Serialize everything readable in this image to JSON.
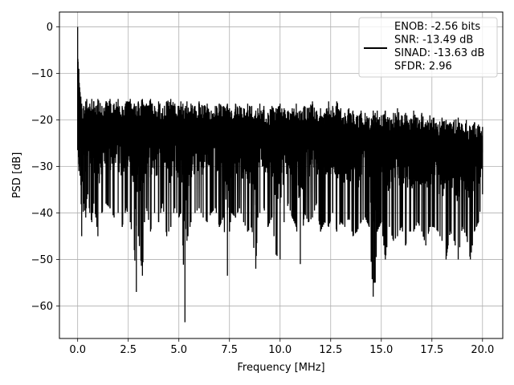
{
  "chart_data": {
    "type": "line",
    "xlabel": "Frequency [MHz]",
    "ylabel": "PSD [dB]",
    "xlim": [
      -0.9,
      21.0
    ],
    "ylim": [
      -67.0,
      3.2
    ],
    "xticks": [
      0.0,
      2.5,
      5.0,
      7.5,
      10.0,
      12.5,
      15.0,
      17.5,
      20.0
    ],
    "xtick_labels": [
      "0.0",
      "2.5",
      "5.0",
      "7.5",
      "10.0",
      "12.5",
      "15.0",
      "17.5",
      "20.0"
    ],
    "yticks": [
      0,
      -10,
      -20,
      -30,
      -40,
      -50,
      -60
    ],
    "ytick_labels": [
      "0",
      "−10",
      "−20",
      "−30",
      "−40",
      "−50",
      "−60"
    ],
    "grid": true,
    "legend_position": "top-right",
    "colors": {
      "line": "#000000",
      "grid": "#b0b0b0",
      "axes": "#000000"
    },
    "series": [
      {
        "name": "ENOB: -2.56 bits\nSNR: -13.49 dB\nSINAD: -13.63 dB\nSFDR: 2.96",
        "x": [
          0.0,
          0.02,
          0.04,
          0.06,
          0.08,
          0.1,
          0.12,
          0.16,
          0.2,
          0.3,
          0.4,
          0.45,
          0.5,
          0.6,
          0.7,
          0.8,
          0.9,
          1.0,
          1.2,
          1.4,
          1.6,
          1.8,
          2.0,
          2.2,
          2.4,
          2.6,
          2.8,
          2.9,
          3.0,
          3.2,
          3.3,
          3.4,
          3.6,
          3.8,
          4.0,
          4.2,
          4.4,
          4.6,
          4.8,
          5.0,
          5.1,
          5.2,
          5.3,
          5.4,
          5.6,
          5.8,
          6.0,
          6.2,
          6.4,
          6.6,
          6.8,
          7.0,
          7.2,
          7.4,
          7.5,
          7.6,
          7.8,
          8.0,
          8.2,
          8.4,
          8.6,
          8.8,
          8.9,
          9.0,
          9.2,
          9.4,
          9.6,
          9.8,
          10.0,
          10.2,
          10.4,
          10.6,
          10.8,
          11.0,
          11.2,
          11.4,
          11.6,
          11.8,
          12.0,
          12.2,
          12.4,
          12.6,
          12.8,
          13.0,
          13.2,
          13.4,
          13.6,
          13.8,
          14.0,
          14.2,
          14.4,
          14.6,
          14.65,
          14.7,
          14.8,
          15.0,
          15.2,
          15.4,
          15.6,
          15.8,
          16.0,
          16.2,
          16.4,
          16.6,
          16.8,
          17.0,
          17.2,
          17.4,
          17.6,
          17.8,
          18.0,
          18.2,
          18.4,
          18.6,
          18.8,
          19.0,
          19.2,
          19.4,
          19.6,
          19.8,
          20.0
        ],
        "y_high": [
          0.0,
          -7.5,
          -10.0,
          -9.0,
          -12.0,
          -13.0,
          -14.0,
          -15.0,
          -16.5,
          -17.0,
          -16.0,
          -15.5,
          -17.5,
          -16.5,
          -15.5,
          -16.0,
          -17.0,
          -15.5,
          -17.0,
          -16.0,
          -15.5,
          -16.5,
          -15.5,
          -17.0,
          -16.0,
          -15.5,
          -16.5,
          -17.0,
          -16.0,
          -15.5,
          -17.0,
          -16.5,
          -15.5,
          -17.0,
          -16.0,
          -17.5,
          -16.0,
          -15.5,
          -16.5,
          -17.0,
          -16.0,
          -16.5,
          -17.5,
          -16.0,
          -16.5,
          -17.0,
          -16.0,
          -17.0,
          -16.5,
          -18.0,
          -17.0,
          -16.5,
          -17.0,
          -16.5,
          -17.5,
          -18.0,
          -16.5,
          -17.0,
          -17.5,
          -16.5,
          -17.0,
          -18.0,
          -17.5,
          -16.5,
          -17.0,
          -18.5,
          -17.0,
          -17.5,
          -16.5,
          -17.5,
          -18.0,
          -17.5,
          -16.5,
          -18.0,
          -17.0,
          -17.5,
          -16.0,
          -18.0,
          -17.5,
          -18.5,
          -16.0,
          -17.0,
          -16.0,
          -17.5,
          -18.5,
          -17.5,
          -18.0,
          -19.0,
          -18.0,
          -18.5,
          -19.5,
          -18.0,
          -19.0,
          -18.5,
          -18.0,
          -19.0,
          -18.0,
          -19.5,
          -18.5,
          -17.5,
          -19.0,
          -18.5,
          -20.0,
          -18.0,
          -19.5,
          -18.5,
          -20.5,
          -19.0,
          -19.5,
          -21.0,
          -19.5,
          -20.0,
          -20.5,
          -20.0,
          -19.5,
          -21.0,
          -20.0,
          -21.5,
          -20.5,
          -21.0,
          -21.5
        ],
        "y_low": [
          -26.5,
          -25.0,
          -28.0,
          -31.0,
          -29.0,
          -30.0,
          -32.0,
          -34.0,
          -45.0,
          -38.0,
          -41.0,
          -37.0,
          -36.0,
          -40.0,
          -42.0,
          -38.0,
          -41.0,
          -45.0,
          -40.0,
          -38.0,
          -39.0,
          -41.0,
          -40.0,
          -43.0,
          -39.0,
          -42.0,
          -48.0,
          -57.0,
          -45.0,
          -53.5,
          -42.0,
          -39.0,
          -44.0,
          -40.0,
          -42.0,
          -38.0,
          -45.0,
          -43.0,
          -39.0,
          -41.0,
          -40.0,
          -47.0,
          -63.5,
          -46.0,
          -42.0,
          -40.0,
          -39.0,
          -41.0,
          -42.0,
          -40.0,
          -39.0,
          -43.0,
          -41.0,
          -53.5,
          -44.0,
          -40.0,
          -41.0,
          -39.0,
          -42.0,
          -44.0,
          -43.0,
          -52.0,
          -41.0,
          -40.0,
          -39.0,
          -43.0,
          -41.0,
          -49.0,
          -50.0,
          -42.0,
          -38.0,
          -41.0,
          -43.0,
          -51.0,
          -40.0,
          -42.0,
          -41.0,
          -38.0,
          -44.0,
          -42.0,
          -43.0,
          -40.0,
          -44.0,
          -42.0,
          -43.0,
          -41.0,
          -45.0,
          -44.0,
          -42.0,
          -41.0,
          -43.0,
          -58.0,
          -55.0,
          -55.0,
          -44.0,
          -42.0,
          -50.0,
          -43.0,
          -46.0,
          -45.0,
          -43.0,
          -47.0,
          -44.0,
          -44.0,
          -42.0,
          -44.0,
          -47.0,
          -43.0,
          -43.0,
          -44.0,
          -46.0,
          -50.0,
          -44.0,
          -46.0,
          -50.0,
          -43.0,
          -45.0,
          -50.0,
          -44.0,
          -42.0,
          -36.0
        ]
      }
    ]
  }
}
